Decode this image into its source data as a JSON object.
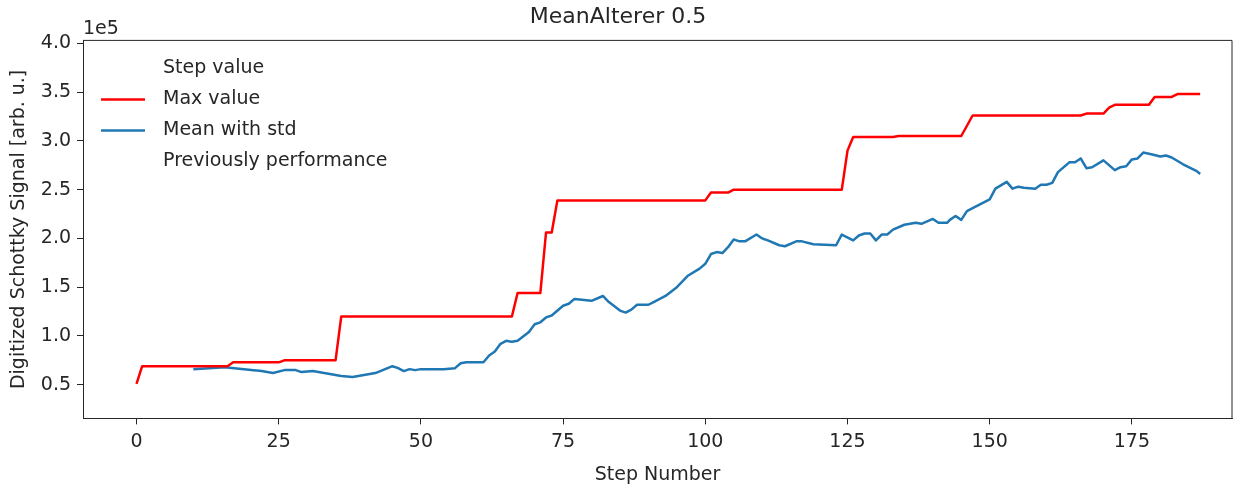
{
  "chart_data": {
    "type": "line",
    "title": "MeanAlterer 0.5",
    "xlabel": "Step Number",
    "ylabel": "Digitized Schottky Signal [arb. u.]",
    "annotations": [
      "1e5"
    ],
    "xlim": [
      -9.4,
      192.6
    ],
    "xticks": [
      0,
      25,
      50,
      75,
      100,
      125,
      150,
      175
    ],
    "ylim": [
      0.155,
      4.03
    ],
    "yticks": [
      {
        "value": 0.5,
        "label": "0.5"
      },
      {
        "value": 1,
        "label": "1.0"
      },
      {
        "value": 1.5,
        "label": "1.5"
      },
      {
        "value": 2,
        "label": "2.0"
      },
      {
        "value": 2.5,
        "label": "2.5"
      },
      {
        "value": 3,
        "label": "3.0"
      },
      {
        "value": 3.5,
        "label": "3.5"
      },
      {
        "value": 4,
        "label": "4.0"
      }
    ],
    "grid": false,
    "legend": "top left",
    "marker": "none",
    "line_style": "solid",
    "series": [
      {
        "name": "Step value"
      },
      {
        "name": "Max value",
        "color": "#ff0000",
        "x": [
          0,
          1,
          16,
          17,
          25,
          26,
          35,
          36,
          66,
          67,
          71,
          72,
          73,
          74,
          100,
          101,
          104,
          105,
          124,
          125,
          126,
          133,
          134,
          145,
          147,
          166,
          167,
          170,
          171,
          172,
          178,
          179,
          182,
          183,
          187
        ],
        "values": [
          0.51,
          0.69,
          0.69,
          0.73,
          0.73,
          0.75,
          0.75,
          1.2,
          1.2,
          1.44,
          1.44,
          2.06,
          2.06,
          2.39,
          2.39,
          2.47,
          2.47,
          2.5,
          2.5,
          2.9,
          3.04,
          3.04,
          3.05,
          3.05,
          3.26,
          3.26,
          3.28,
          3.28,
          3.34,
          3.37,
          3.37,
          3.45,
          3.45,
          3.48,
          3.48
        ]
      },
      {
        "name": "Mean with std",
        "color": "#1f77b4",
        "x": [
          10,
          15.5,
          22,
          24,
          26,
          28,
          29,
          31,
          36,
          38,
          42,
          45,
          46,
          47,
          48,
          49,
          50,
          54,
          56,
          57,
          58,
          61,
          62,
          63,
          64,
          65,
          66,
          67,
          69,
          70,
          71,
          72,
          73,
          75,
          76,
          77,
          80,
          82,
          83,
          85,
          86,
          87,
          88,
          90,
          91,
          93,
          95,
          97,
          99,
          100,
          101,
          102,
          103,
          104,
          105,
          106,
          107,
          109,
          110,
          111,
          113,
          114,
          116,
          117,
          119,
          123,
          124,
          126,
          127,
          128,
          129,
          130,
          131,
          132,
          133,
          135,
          137,
          138,
          140,
          141,
          142.5,
          143,
          144,
          145,
          146,
          147,
          150,
          151,
          153,
          154,
          155,
          156,
          158,
          159,
          160,
          161,
          162,
          164,
          165,
          166,
          167,
          168,
          170,
          172,
          173,
          174,
          175,
          176,
          177,
          178.6,
          180,
          181,
          182,
          184,
          186.4,
          187
        ],
        "values": [
          0.66,
          0.68,
          0.64,
          0.62,
          0.65,
          0.65,
          0.63,
          0.64,
          0.59,
          0.58,
          0.62,
          0.69,
          0.67,
          0.64,
          0.66,
          0.65,
          0.66,
          0.66,
          0.67,
          0.72,
          0.73,
          0.73,
          0.8,
          0.84,
          0.92,
          0.95,
          0.94,
          0.95,
          1.04,
          1.12,
          1.14,
          1.19,
          1.21,
          1.31,
          1.33,
          1.38,
          1.36,
          1.41,
          1.35,
          1.26,
          1.24,
          1.27,
          1.32,
          1.32,
          1.35,
          1.41,
          1.5,
          1.62,
          1.69,
          1.74,
          1.84,
          1.86,
          1.85,
          1.91,
          1.99,
          1.97,
          1.97,
          2.04,
          2.0,
          1.98,
          1.93,
          1.92,
          1.97,
          1.97,
          1.94,
          1.93,
          2.04,
          1.98,
          2.03,
          2.05,
          2.05,
          1.98,
          2.04,
          2.04,
          2.09,
          2.14,
          2.16,
          2.15,
          2.2,
          2.16,
          2.16,
          2.19,
          2.23,
          2.19,
          2.28,
          2.31,
          2.4,
          2.51,
          2.58,
          2.51,
          2.53,
          2.52,
          2.51,
          2.55,
          2.55,
          2.57,
          2.68,
          2.78,
          2.78,
          2.82,
          2.72,
          2.73,
          2.8,
          2.7,
          2.73,
          2.74,
          2.81,
          2.82,
          2.88,
          2.86,
          2.84,
          2.85,
          2.83,
          2.76,
          2.69,
          2.66
        ]
      },
      {
        "name": "Previously performance"
      }
    ]
  }
}
